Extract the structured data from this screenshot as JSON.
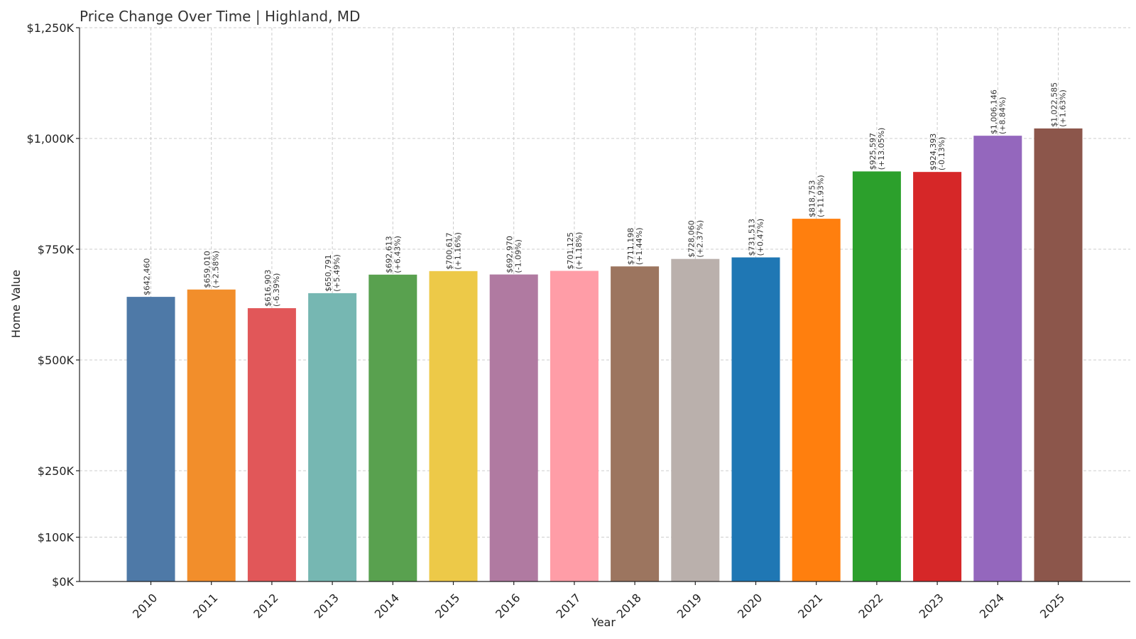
{
  "chart_data": {
    "type": "bar",
    "title": "Price Change Over Time | Highland, MD",
    "xlabel": "Year",
    "ylabel": "Home Value",
    "ylim": [
      0,
      1250000
    ],
    "yticks": [
      0,
      100000,
      250000,
      500000,
      750000,
      1000000,
      1250000
    ],
    "ytick_labels": [
      "$0K",
      "$100K",
      "$250K",
      "$500K",
      "$750K",
      "$1,000K",
      "$1,250K"
    ],
    "grid": true,
    "categories": [
      "2010",
      "2011",
      "2012",
      "2013",
      "2014",
      "2015",
      "2016",
      "2017",
      "2018",
      "2019",
      "2020",
      "2021",
      "2022",
      "2023",
      "2024",
      "2025"
    ],
    "values": [
      642460,
      659010,
      616903,
      650791,
      692613,
      700617,
      692970,
      701125,
      711198,
      728060,
      731513,
      818753,
      925597,
      924393,
      1006146,
      1022585
    ],
    "value_labels": [
      "$642,460",
      "$659,010",
      "$616,903",
      "$650,791",
      "$692,613",
      "$700,617",
      "$692,970",
      "$701,125",
      "$711,198",
      "$728,060",
      "$731,513",
      "$818,753",
      "$925,597",
      "$924,393",
      "$1,006,146",
      "$1,022,585"
    ],
    "change_labels": [
      "",
      "(+2.58%)",
      "(-6.39%)",
      "(+5.49%)",
      "(+6.43%)",
      "(+1.16%)",
      "(-1.09%)",
      "(+1.18%)",
      "(+1.44%)",
      "(+2.37%)",
      "(+0.47%)",
      "(+11.93%)",
      "(+13.05%)",
      "(-0.13%)",
      "(+8.84%)",
      "(+1.63%)"
    ],
    "colors": [
      "#4e79a7",
      "#f28e2b",
      "#e15759",
      "#76b7b2",
      "#59a14f",
      "#edc948",
      "#b07aa1",
      "#ff9da7",
      "#9c755f",
      "#bab0ac",
      "#1f77b4",
      "#ff7f0e",
      "#2ca02c",
      "#d62728",
      "#9467bd",
      "#8c564b"
    ]
  }
}
